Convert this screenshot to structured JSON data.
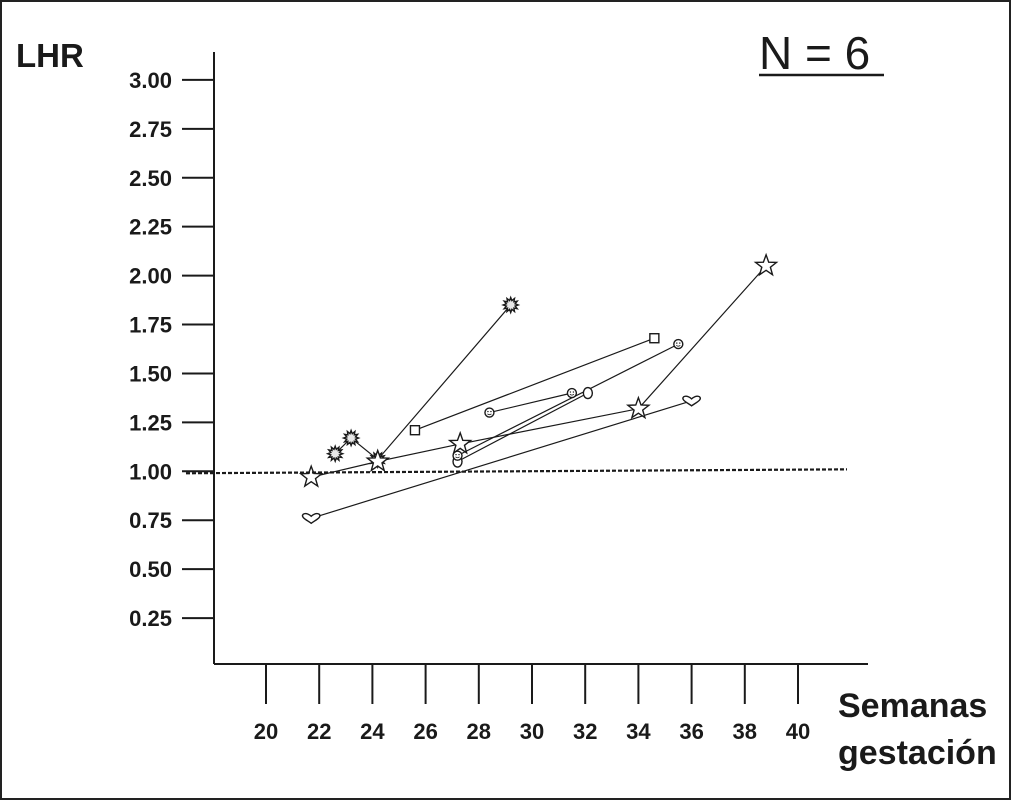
{
  "chart_data": {
    "type": "line",
    "title": "N = 6",
    "ylabel": "LHR",
    "xlabel_line1": "Semanas",
    "xlabel_line2": "gestación",
    "xlim": [
      18,
      42.5
    ],
    "ylim": [
      0,
      3.0
    ],
    "x_ticks": [
      20,
      22,
      24,
      26,
      28,
      30,
      32,
      34,
      36,
      38,
      40
    ],
    "x_tick_labels": [
      "20",
      "22",
      "24",
      "26",
      "28",
      "30",
      "32",
      "34",
      "36",
      "38",
      "40"
    ],
    "y_ticks": [
      0.25,
      0.5,
      0.75,
      1.0,
      1.25,
      1.5,
      1.75,
      2.0,
      2.25,
      2.5,
      2.75,
      3.0
    ],
    "y_tick_labels": [
      "0.25",
      "0.50",
      "0.75",
      "1.00",
      "1.25",
      "1.50",
      "1.75",
      "2.00",
      "2.25",
      "2.50",
      "2.75",
      "3.00"
    ],
    "grid": false,
    "reference_line": {
      "y_start": 0.99,
      "y_end": 1.01,
      "style": "dashed"
    },
    "series": [
      {
        "marker": "burst",
        "points": [
          [
            22.6,
            1.09
          ],
          [
            23.2,
            1.17
          ],
          [
            24.2,
            1.06
          ],
          [
            29.2,
            1.85
          ]
        ]
      },
      {
        "marker": "square",
        "points": [
          [
            25.6,
            1.21
          ],
          [
            34.6,
            1.68
          ]
        ]
      },
      {
        "marker": "smiley",
        "points": [
          [
            28.4,
            1.3
          ],
          [
            31.5,
            1.4
          ]
        ]
      },
      {
        "marker": "circle",
        "points": [
          [
            27.2,
            1.05
          ],
          [
            32.1,
            1.4
          ]
        ]
      },
      {
        "marker": "smiley",
        "points": [
          [
            27.2,
            1.08
          ],
          [
            35.5,
            1.65
          ]
        ]
      },
      {
        "marker": "star",
        "points": [
          [
            21.7,
            0.97
          ],
          [
            24.2,
            1.05
          ],
          [
            27.3,
            1.14
          ],
          [
            34.0,
            1.32
          ],
          [
            38.8,
            2.05
          ]
        ]
      },
      {
        "marker": "heart",
        "points": [
          [
            21.7,
            0.76
          ],
          [
            36.0,
            1.36
          ]
        ]
      }
    ]
  }
}
